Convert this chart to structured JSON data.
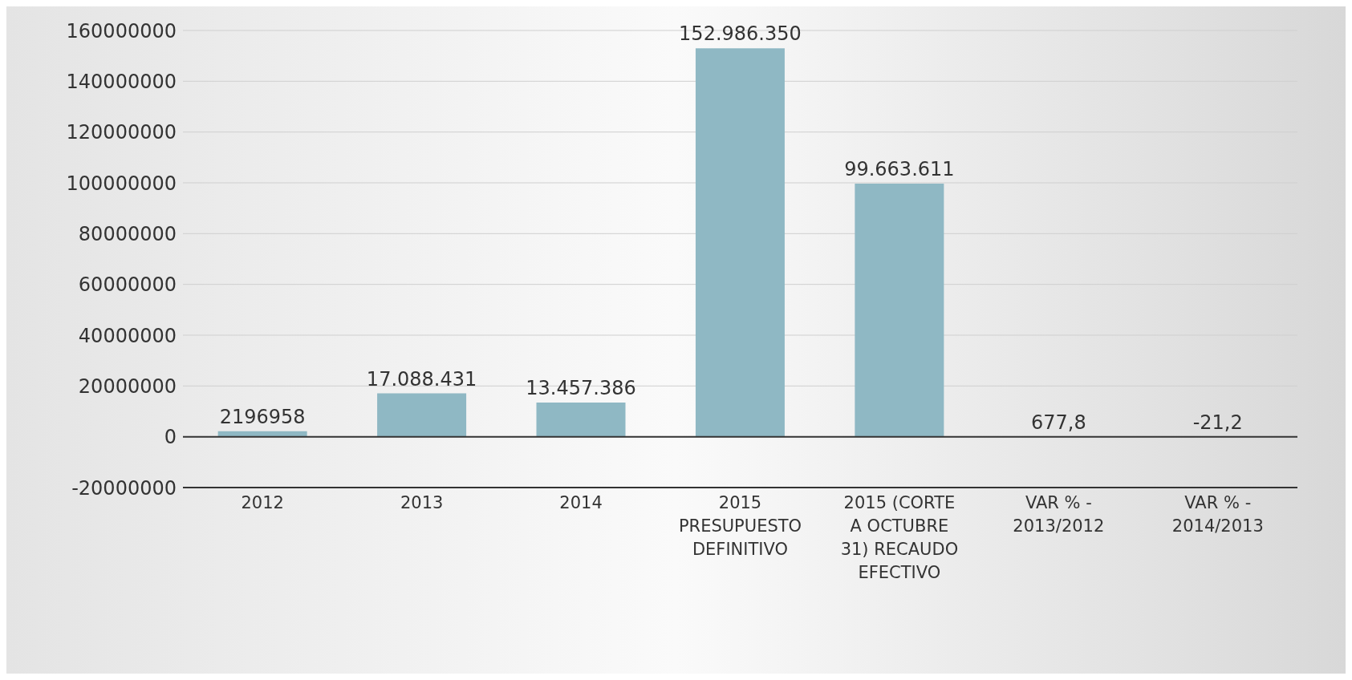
{
  "chart_data": {
    "type": "bar",
    "categories": [
      "2012",
      "2013",
      "2014",
      "2015 PRESUPUESTO DEFINITIVO",
      "2015 (CORTE A OCTUBRE 31) RECAUDO EFECTIVO",
      "VAR % - 2013/2012",
      "VAR % - 2014/2013"
    ],
    "values": [
      2196958,
      17088431,
      13457386,
      152986350,
      99663611,
      677.8,
      -21.2
    ],
    "value_labels": [
      "2196958",
      "17.088.431",
      "13.457.386",
      "152.986.350",
      "99.663.611",
      "677,8",
      "-21,2"
    ],
    "color": "#8fb8c4",
    "ylim": [
      -20000000,
      160000000
    ],
    "yticks": [
      -20000000,
      0,
      20000000,
      40000000,
      60000000,
      80000000,
      100000000,
      120000000,
      140000000,
      160000000
    ],
    "grid": "y"
  }
}
